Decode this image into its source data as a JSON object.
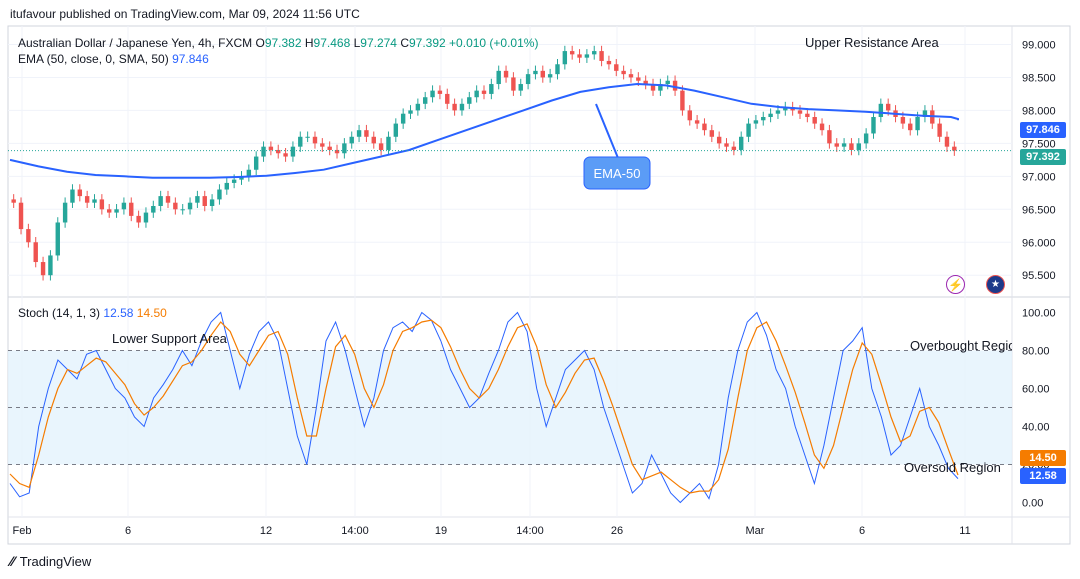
{
  "header": {
    "published": "itufavour published on TradingView.com, Mar 09, 2024 11:56 UTC"
  },
  "legend": {
    "symbol": "Australian Dollar / Japanese Yen, 4h, FXCM",
    "o_label": "O",
    "o": "97.382",
    "h_label": "H",
    "h": "97.468",
    "l_label": "L",
    "l": "97.274",
    "c_label": "C",
    "c": "97.392",
    "change": "+0.010 (+0.01%)",
    "ema_label": "EMA (50, close, 0, SMA, 50)",
    "ema_value": "97.846",
    "stoch_label": "Stoch (14, 1, 3)",
    "stoch_k": "12.58",
    "stoch_d": "14.50"
  },
  "annotations": {
    "upper": "Upper Resistance Area",
    "ema_callout": "EMA-50",
    "lower": "Lower Support Area",
    "overbought": "Overbought Region",
    "oversold": "Oversold Region"
  },
  "tags": {
    "ema": "97.846",
    "price": "97.392",
    "stoch_d": "14.50",
    "stoch_k": "12.58"
  },
  "footer": {
    "brand": "TradingView"
  },
  "colors": {
    "up": "#26a69a",
    "down": "#ef5350",
    "ema": "#2962ff",
    "k": "#2962ff",
    "d": "#f57c00",
    "band": "#e3f2fd"
  },
  "chart_data": [
    {
      "type": "candlestick",
      "x_ticks": [
        "Feb",
        "6",
        "12",
        "14:00",
        "19",
        "14:00",
        "26",
        "Mar",
        "6",
        "11"
      ],
      "y_ticks": [
        "95.500",
        "96.000",
        "96.500",
        "97.000",
        "97.500",
        "98.000",
        "98.500",
        "99.000"
      ],
      "ylim": [
        95.2,
        99.25
      ],
      "close": [
        96.6,
        96.2,
        96.0,
        95.7,
        95.5,
        95.8,
        96.3,
        96.6,
        96.8,
        96.7,
        96.6,
        96.65,
        96.5,
        96.45,
        96.5,
        96.6,
        96.4,
        96.3,
        96.45,
        96.55,
        96.7,
        96.6,
        96.5,
        96.5,
        96.6,
        96.7,
        96.55,
        96.65,
        96.8,
        96.9,
        96.95,
        97.0,
        97.1,
        97.3,
        97.45,
        97.4,
        97.35,
        97.3,
        97.45,
        97.6,
        97.6,
        97.5,
        97.45,
        97.4,
        97.35,
        97.5,
        97.6,
        97.7,
        97.6,
        97.5,
        97.4,
        97.6,
        97.8,
        97.95,
        98.0,
        98.1,
        98.2,
        98.3,
        98.25,
        98.1,
        98.0,
        98.1,
        98.2,
        98.3,
        98.25,
        98.4,
        98.6,
        98.5,
        98.3,
        98.4,
        98.55,
        98.6,
        98.5,
        98.55,
        98.7,
        98.9,
        98.85,
        98.8,
        98.85,
        98.9,
        98.75,
        98.7,
        98.6,
        98.55,
        98.5,
        98.45,
        98.4,
        98.3,
        98.4,
        98.45,
        98.3,
        98.0,
        97.85,
        97.8,
        97.7,
        97.6,
        97.5,
        97.45,
        97.4,
        97.6,
        97.8,
        97.85,
        97.9,
        97.95,
        98.0,
        98.05,
        98.0,
        97.95,
        97.9,
        97.8,
        97.7,
        97.5,
        97.45,
        97.5,
        97.4,
        97.5,
        97.65,
        97.9,
        98.1,
        98.0,
        97.9,
        97.8,
        97.7,
        97.9,
        98.0,
        97.8,
        97.6,
        97.45,
        97.39
      ],
      "ema50": [
        97.25,
        97.15,
        97.07,
        97.02,
        97.0,
        96.98,
        96.98,
        96.98,
        96.99,
        97.01,
        97.05,
        97.1,
        97.2,
        97.3,
        97.4,
        97.55,
        97.7,
        97.85,
        98.0,
        98.15,
        98.28,
        98.35,
        98.4,
        98.38,
        98.3,
        98.2,
        98.1,
        98.05,
        98.02,
        98.0,
        97.98,
        97.95,
        97.92,
        97.9,
        97.87,
        97.85
      ],
      "ema_value": 97.846
    },
    {
      "type": "line",
      "y_ticks": [
        "0.00",
        "20.00",
        "40.00",
        "60.00",
        "80.00",
        "100.00"
      ],
      "ylim": [
        -5,
        105
      ],
      "bands": [
        20,
        50,
        80
      ],
      "series": [
        {
          "name": "%K",
          "values": [
            10,
            3,
            5,
            40,
            60,
            75,
            70,
            65,
            78,
            80,
            70,
            60,
            55,
            45,
            40,
            55,
            62,
            70,
            80,
            72,
            85,
            95,
            100,
            80,
            60,
            78,
            90,
            95,
            85,
            60,
            35,
            20,
            50,
            85,
            95,
            80,
            60,
            40,
            55,
            80,
            92,
            95,
            90,
            100,
            96,
            85,
            70,
            60,
            50,
            55,
            68,
            80,
            95,
            100,
            90,
            60,
            40,
            55,
            70,
            75,
            80,
            70,
            50,
            35,
            20,
            5,
            10,
            25,
            15,
            5,
            0,
            5,
            10,
            2,
            20,
            55,
            80,
            95,
            100,
            88,
            70,
            60,
            40,
            25,
            10,
            30,
            55,
            80,
            85,
            92,
            60,
            45,
            25,
            30,
            45,
            60,
            40,
            30,
            18,
            12.58
          ]
        },
        {
          "name": "%D",
          "values": [
            15,
            10,
            8,
            25,
            45,
            60,
            70,
            68,
            72,
            76,
            74,
            68,
            62,
            52,
            46,
            50,
            56,
            64,
            72,
            74,
            80,
            88,
            95,
            90,
            78,
            72,
            80,
            88,
            90,
            78,
            55,
            35,
            35,
            60,
            82,
            88,
            78,
            60,
            50,
            62,
            80,
            90,
            92,
            95,
            96,
            92,
            82,
            70,
            60,
            55,
            60,
            70,
            82,
            92,
            94,
            82,
            62,
            50,
            58,
            68,
            75,
            76,
            64,
            50,
            35,
            20,
            12,
            14,
            16,
            12,
            8,
            5,
            6,
            6,
            12,
            28,
            55,
            80,
            92,
            95,
            85,
            72,
            58,
            42,
            25,
            18,
            30,
            50,
            70,
            84,
            78,
            62,
            45,
            32,
            35,
            48,
            50,
            42,
            28,
            14.5
          ]
        }
      ]
    }
  ]
}
